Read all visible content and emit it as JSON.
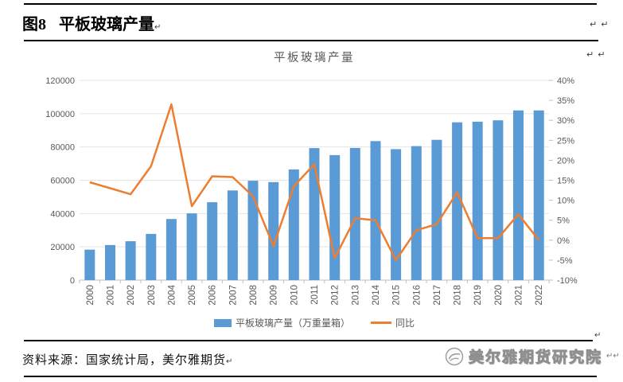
{
  "figure": {
    "label": "图8",
    "title": "平板玻璃产量"
  },
  "marks": {
    "return": "↵"
  },
  "chart_data": {
    "type": "bar",
    "title": "平板玻璃产量",
    "categories": [
      "2000",
      "2001",
      "2002",
      "2003",
      "2004",
      "2005",
      "2006",
      "2007",
      "2008",
      "2009",
      "2010",
      "2011",
      "2012",
      "2013",
      "2014",
      "2015",
      "2016",
      "2017",
      "2018",
      "2019",
      "2020",
      "2021",
      "2022"
    ],
    "series": [
      {
        "name": "平板玻璃产量（万重量箱）",
        "type": "bar",
        "axis": "left",
        "color": "#5B9BD5",
        "values": [
          18300,
          21100,
          23400,
          27800,
          36700,
          40100,
          46800,
          53900,
          59700,
          58900,
          66500,
          79300,
          75100,
          79400,
          83500,
          78700,
          80500,
          84300,
          94800,
          95200,
          96000,
          102000,
          102000
        ]
      },
      {
        "name": "同比",
        "type": "line",
        "axis": "right",
        "color": "#ED7D31",
        "values": [
          14.5,
          13,
          11.5,
          18.5,
          34,
          8.5,
          16,
          15.8,
          11,
          -1.5,
          13.5,
          19,
          -4.5,
          5.5,
          5,
          -5,
          2.5,
          4,
          12,
          0.5,
          0.5,
          6.5,
          0
        ]
      }
    ],
    "left_axis": {
      "min": 0,
      "max": 120000,
      "step": 20000,
      "labels": [
        "0",
        "20000",
        "40000",
        "60000",
        "80000",
        "100000",
        "120000"
      ]
    },
    "right_axis": {
      "min": -10,
      "max": 40,
      "step": 5,
      "labels": [
        "-10%",
        "-5%",
        "0%",
        "5%",
        "10%",
        "15%",
        "20%",
        "25%",
        "30%",
        "35%",
        "40%"
      ]
    },
    "grid": true,
    "legend_position": "bottom"
  },
  "source": {
    "text": "资料来源：国家统计局，美尔雅期货"
  },
  "logo": {
    "text": "美尔雅期货研究院",
    "icon": "swirl-circle-icon"
  },
  "colors": {
    "bar": "#5B9BD5",
    "line": "#ED7D31",
    "axis_text": "#595959",
    "grid": "#E4E4E4",
    "axis": "#BFBFBF",
    "rule": "#000000"
  }
}
